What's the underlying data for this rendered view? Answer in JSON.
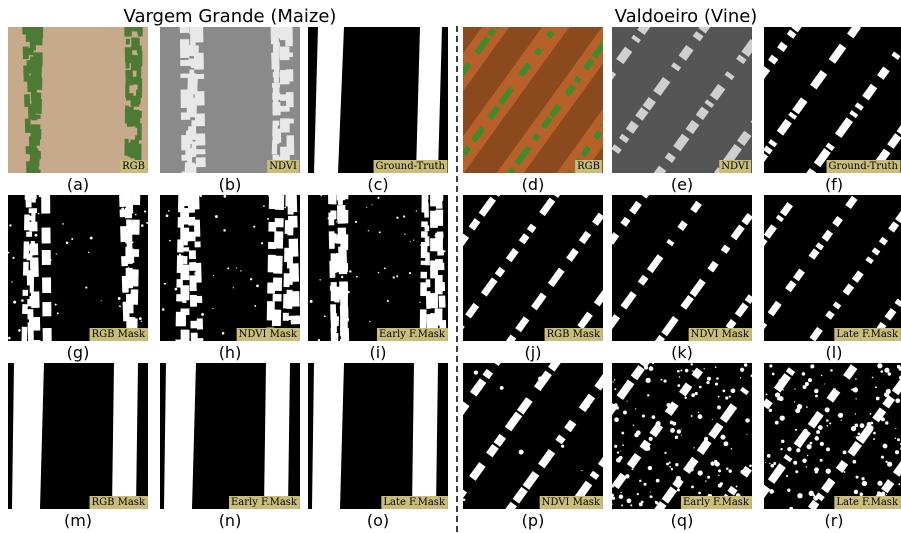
{
  "groups": [
    {
      "title": "Vargem Grande (Maize)"
    },
    {
      "title": "Valdoeiro (Vine)"
    }
  ],
  "panels": [
    {
      "letter": "(a)",
      "tag": "RGB"
    },
    {
      "letter": "(b)",
      "tag": "NDVI"
    },
    {
      "letter": "(c)",
      "tag": "Ground-Truth"
    },
    {
      "letter": "(d)",
      "tag": "RGB"
    },
    {
      "letter": "(e)",
      "tag": "NDVI"
    },
    {
      "letter": "(f)",
      "tag": "Ground-Truth"
    },
    {
      "letter": "(g)",
      "tag": "RGB Mask"
    },
    {
      "letter": "(h)",
      "tag": "NDVI Mask"
    },
    {
      "letter": "(i)",
      "tag": "Early F.Mask"
    },
    {
      "letter": "(j)",
      "tag": "RGB Mask"
    },
    {
      "letter": "(k)",
      "tag": "NDVI Mask"
    },
    {
      "letter": "(l)",
      "tag": "Late F.Mask"
    },
    {
      "letter": "(m)",
      "tag": "RGB Mask"
    },
    {
      "letter": "(n)",
      "tag": "Early F.Mask"
    },
    {
      "letter": "(o)",
      "tag": "Late F.Mask"
    },
    {
      "letter": "(p)",
      "tag": "NDVI Mask"
    },
    {
      "letter": "(q)",
      "tag": "Early F.Mask"
    },
    {
      "letter": "(r)",
      "tag": "Late F.Mask"
    }
  ]
}
